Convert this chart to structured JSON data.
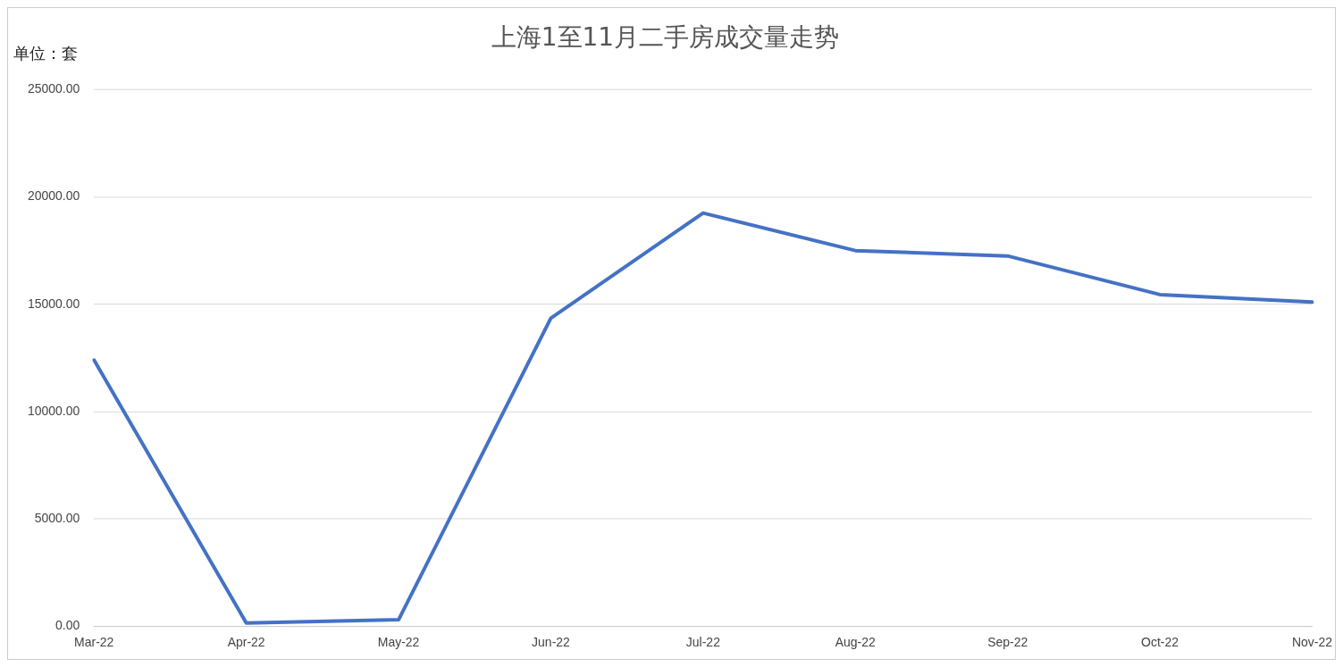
{
  "chart_data": {
    "type": "line",
    "title": "上海1至11月二手房成交量走势",
    "ylabel": "单位：套",
    "categories": [
      "Mar-22",
      "Apr-22",
      "May-22",
      "Jun-22",
      "Jul-22",
      "Aug-22",
      "Sep-22",
      "Oct-22",
      "Nov-22"
    ],
    "series": [
      {
        "color": "#4472c4",
        "values": [
          12400,
          150,
          300,
          14350,
          19250,
          17500,
          17250,
          15450,
          15100
        ]
      }
    ],
    "ylim": [
      0,
      25000
    ],
    "yticks": [
      {
        "value": 0,
        "label": "0.00"
      },
      {
        "value": 5000,
        "label": "5000.00"
      },
      {
        "value": 10000,
        "label": "10000.00"
      },
      {
        "value": 15000,
        "label": "15000.00"
      },
      {
        "value": 20000,
        "label": "20000.00"
      },
      {
        "value": 25000,
        "label": "25000.00"
      }
    ],
    "grid": "y",
    "legend": false,
    "marker": "none",
    "line_style": "solid"
  }
}
